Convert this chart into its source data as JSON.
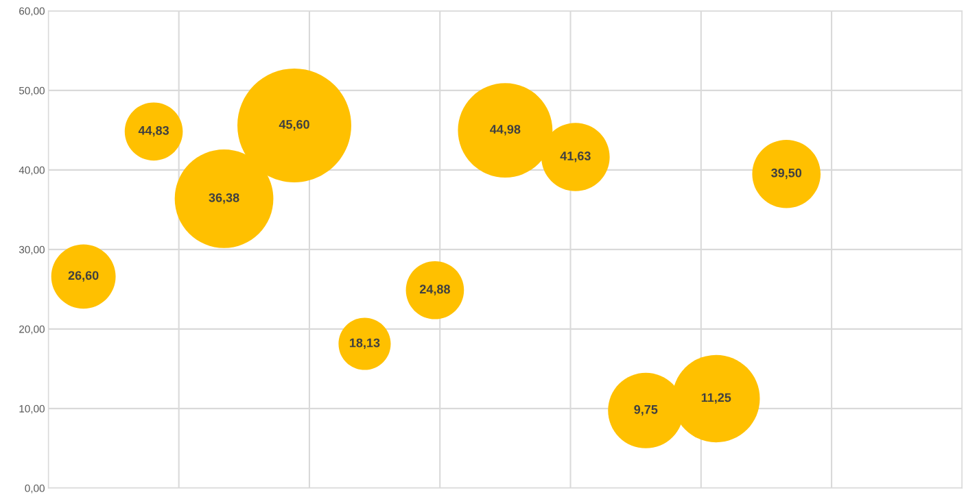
{
  "chart_data": {
    "type": "bubble",
    "categories": [
      null,
      null,
      null,
      null,
      null,
      null,
      null,
      null,
      null,
      null,
      null,
      null,
      null
    ],
    "series": [
      {
        "color": "#ffc000",
        "values": [
          26.6,
          44.83,
          36.38,
          45.6,
          18.13,
          24.88,
          44.98,
          41.63,
          9.75,
          11.25,
          39.5,
          null,
          null
        ],
        "value_labels": [
          "26,60",
          "44,83",
          "36,38",
          "45,60",
          "18,13",
          "24,88",
          "44,98",
          "41,63",
          "9,75",
          "11,25",
          "39,50",
          null,
          null
        ],
        "sizes": [
          0.32,
          0.26,
          0.75,
          1,
          0.21,
          0.26,
          0.69,
          0.36,
          0.44,
          0.59,
          0.36,
          null,
          null
        ]
      }
    ],
    "ylim": [
      0,
      60
    ],
    "yticks": [
      {
        "value": 0,
        "label": "0,00"
      },
      {
        "value": 10,
        "label": "10,00"
      },
      {
        "value": 20,
        "label": "20,00"
      },
      {
        "value": 30,
        "label": "30,00"
      },
      {
        "value": 40,
        "label": "40,00"
      },
      {
        "value": 50,
        "label": "50,00"
      },
      {
        "value": 60,
        "label": "60,00"
      }
    ],
    "grid": true
  }
}
